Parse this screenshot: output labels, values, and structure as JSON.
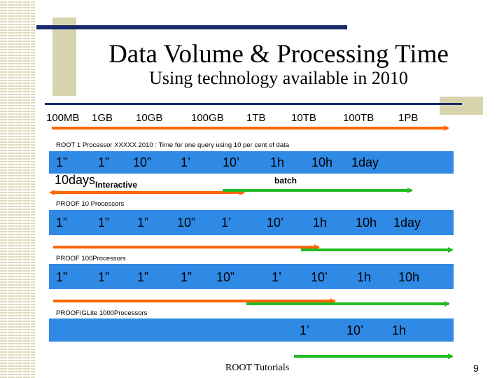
{
  "title": "Data Volume & Processing Time",
  "subtitle": "Using technology available in 2010",
  "volume_scale": [
    "100MB",
    "1GB",
    "10GB",
    "100GB",
    "1TB",
    "10TB",
    "100TB",
    "1PB"
  ],
  "sections": {
    "root": {
      "label": "ROOT 1 Processor   XXXXX  2010  : Time for one query using 10 per cent of data",
      "times": [
        "1”",
        "1”",
        "10”",
        "1’",
        "10’",
        "1h",
        "10h",
        "1day"
      ],
      "extra_time": "10days",
      "interactive_label": "Interactive",
      "batch_label": "batch"
    },
    "proof10": {
      "label": "PROOF 10 Processors",
      "times": [
        "1”",
        "1”",
        "1”",
        "10”",
        "1’",
        "10’",
        "1h",
        "10h",
        "1day"
      ]
    },
    "proof100": {
      "label": "PROOF 100Processors",
      "times": [
        "1”",
        "1”",
        "1”",
        "1”",
        "10”",
        "1’",
        "10’",
        "1h",
        "10h"
      ]
    },
    "proofglite": {
      "label": "PROOF/GLite 1000Processors",
      "times": [
        "1’",
        "10’",
        "1h"
      ]
    }
  },
  "footer": "ROOT Tutorials",
  "page_number": "9",
  "colors": {
    "bar": "#2f8ae6",
    "interactive_arrow": "#ff6600",
    "batch_arrow": "#22bb22",
    "accent_line": "#1a2a6b",
    "deco": "#d8d5ae"
  }
}
